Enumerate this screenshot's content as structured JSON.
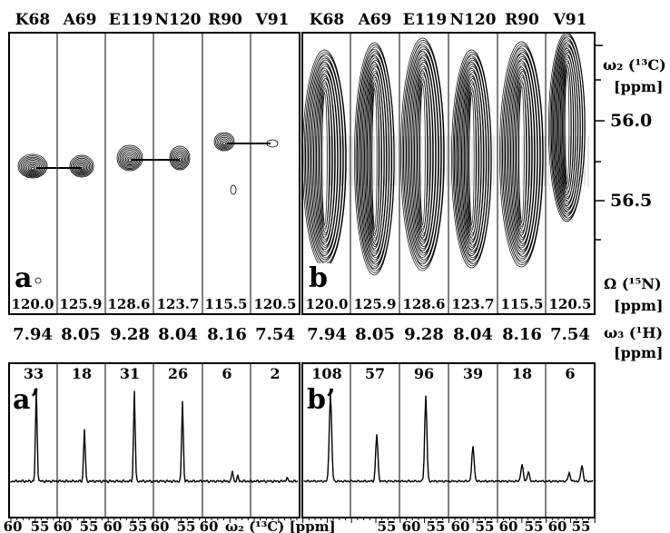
{
  "residues": [
    "K68",
    "A69",
    "E119",
    "N120",
    "R90",
    "V91"
  ],
  "n15_shifts": [
    "120.0",
    "125.9",
    "128.6",
    "123.7",
    "115.5",
    "120.5"
  ],
  "h1_shifts": [
    "7.94",
    "8.05",
    "9.28",
    "8.04",
    "8.16",
    "7.54"
  ],
  "panels": {
    "a": "a",
    "b": "b",
    "a_prime": "a’",
    "b_prime": "b’"
  },
  "a_prime_intensities": [
    "33",
    "18",
    "31",
    "26",
    "6",
    "2"
  ],
  "b_prime_intensities": [
    "108",
    "57",
    "96",
    "39",
    "18",
    "6"
  ],
  "axis_right": {
    "omega2_label": "ω₂ (¹³C)",
    "omega2_unit": "[ppm]",
    "ticks": [
      "56.0",
      "56.5"
    ],
    "omega_n_label": "Ω (¹⁵N)",
    "omega_n_unit": "[ppm]",
    "omega3_label": "ω₃ (¹H)",
    "omega3_unit": "[ppm]"
  },
  "bottom_axis": {
    "label": "ω₂ (¹³C) [ppm]",
    "a_ticks": [
      "60",
      "55",
      "60",
      "55",
      "60",
      "55",
      "60",
      "55",
      "60"
    ],
    "b_ticks": [
      "55",
      "60",
      "55",
      "60",
      "55",
      "60",
      "55",
      "60",
      "55"
    ]
  }
}
